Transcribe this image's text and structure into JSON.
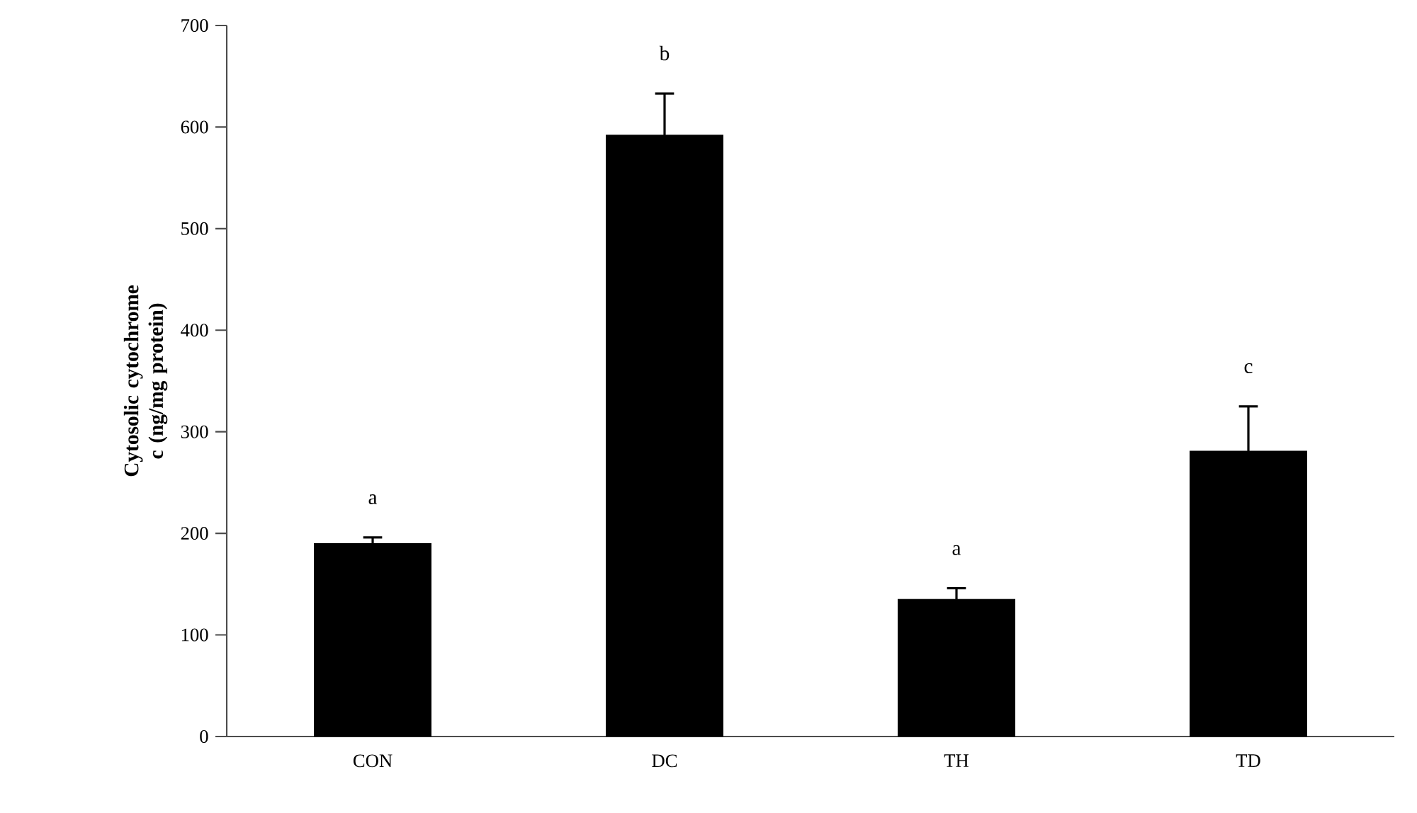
{
  "chart_data": {
    "type": "bar",
    "ylabel": "Cytosolic cytochrome c (ng/mg protein)",
    "categories": [
      "CON",
      "DC",
      "TH",
      "TD"
    ],
    "values": [
      190,
      592,
      135,
      281
    ],
    "errors": [
      6,
      41,
      11,
      44
    ],
    "color": "#000000",
    "ylim": [
      0,
      700
    ],
    "yticks": [
      0,
      100,
      200,
      300,
      400,
      500,
      600,
      700
    ],
    "annotations": [
      "a",
      "b",
      "a",
      "c"
    ],
    "grid": false
  }
}
